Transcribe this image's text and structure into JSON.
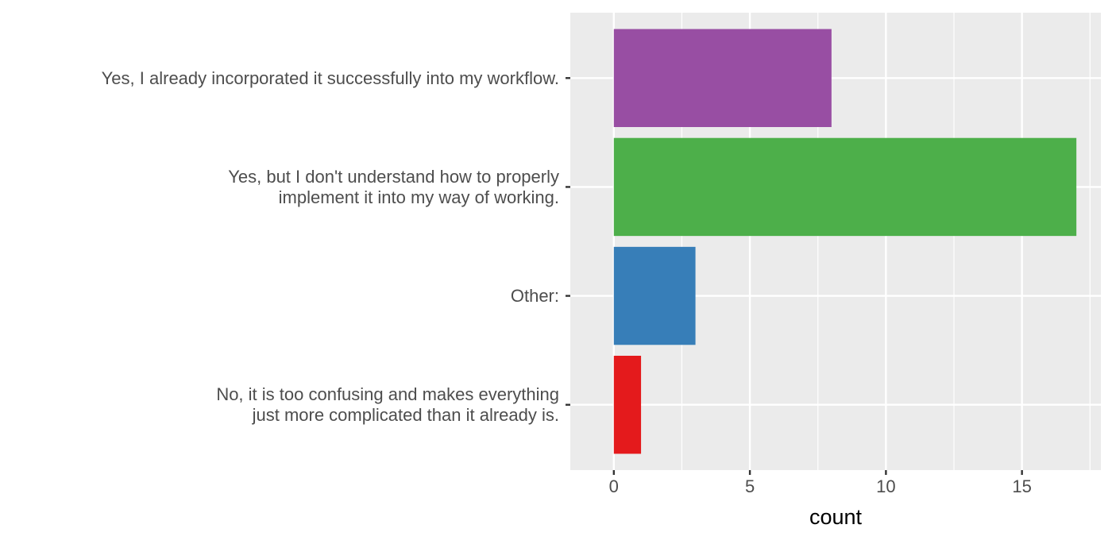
{
  "chart_data": {
    "type": "bar",
    "orientation": "horizontal",
    "xlabel": "count",
    "ylabel": "",
    "xlim": [
      -1.6,
      17.9
    ],
    "x_ticks": [
      0,
      5,
      10,
      15
    ],
    "grid": true,
    "legend": "none",
    "background": "#ebebeb",
    "bars": [
      {
        "label_lines": [
          "Yes, I already incorporated it successfully into my workflow."
        ],
        "value": 8,
        "color": "#984ea3"
      },
      {
        "label_lines": [
          "Yes, but I don't understand how to properly",
          "implement it into my way of working."
        ],
        "value": 17,
        "color": "#4daf4a"
      },
      {
        "label_lines": [
          "Other:"
        ],
        "value": 3,
        "color": "#377eb8"
      },
      {
        "label_lines": [
          "No, it is too confusing and makes everything",
          "just more complicated than it already is."
        ],
        "value": 1,
        "color": "#e41a1c"
      }
    ]
  }
}
